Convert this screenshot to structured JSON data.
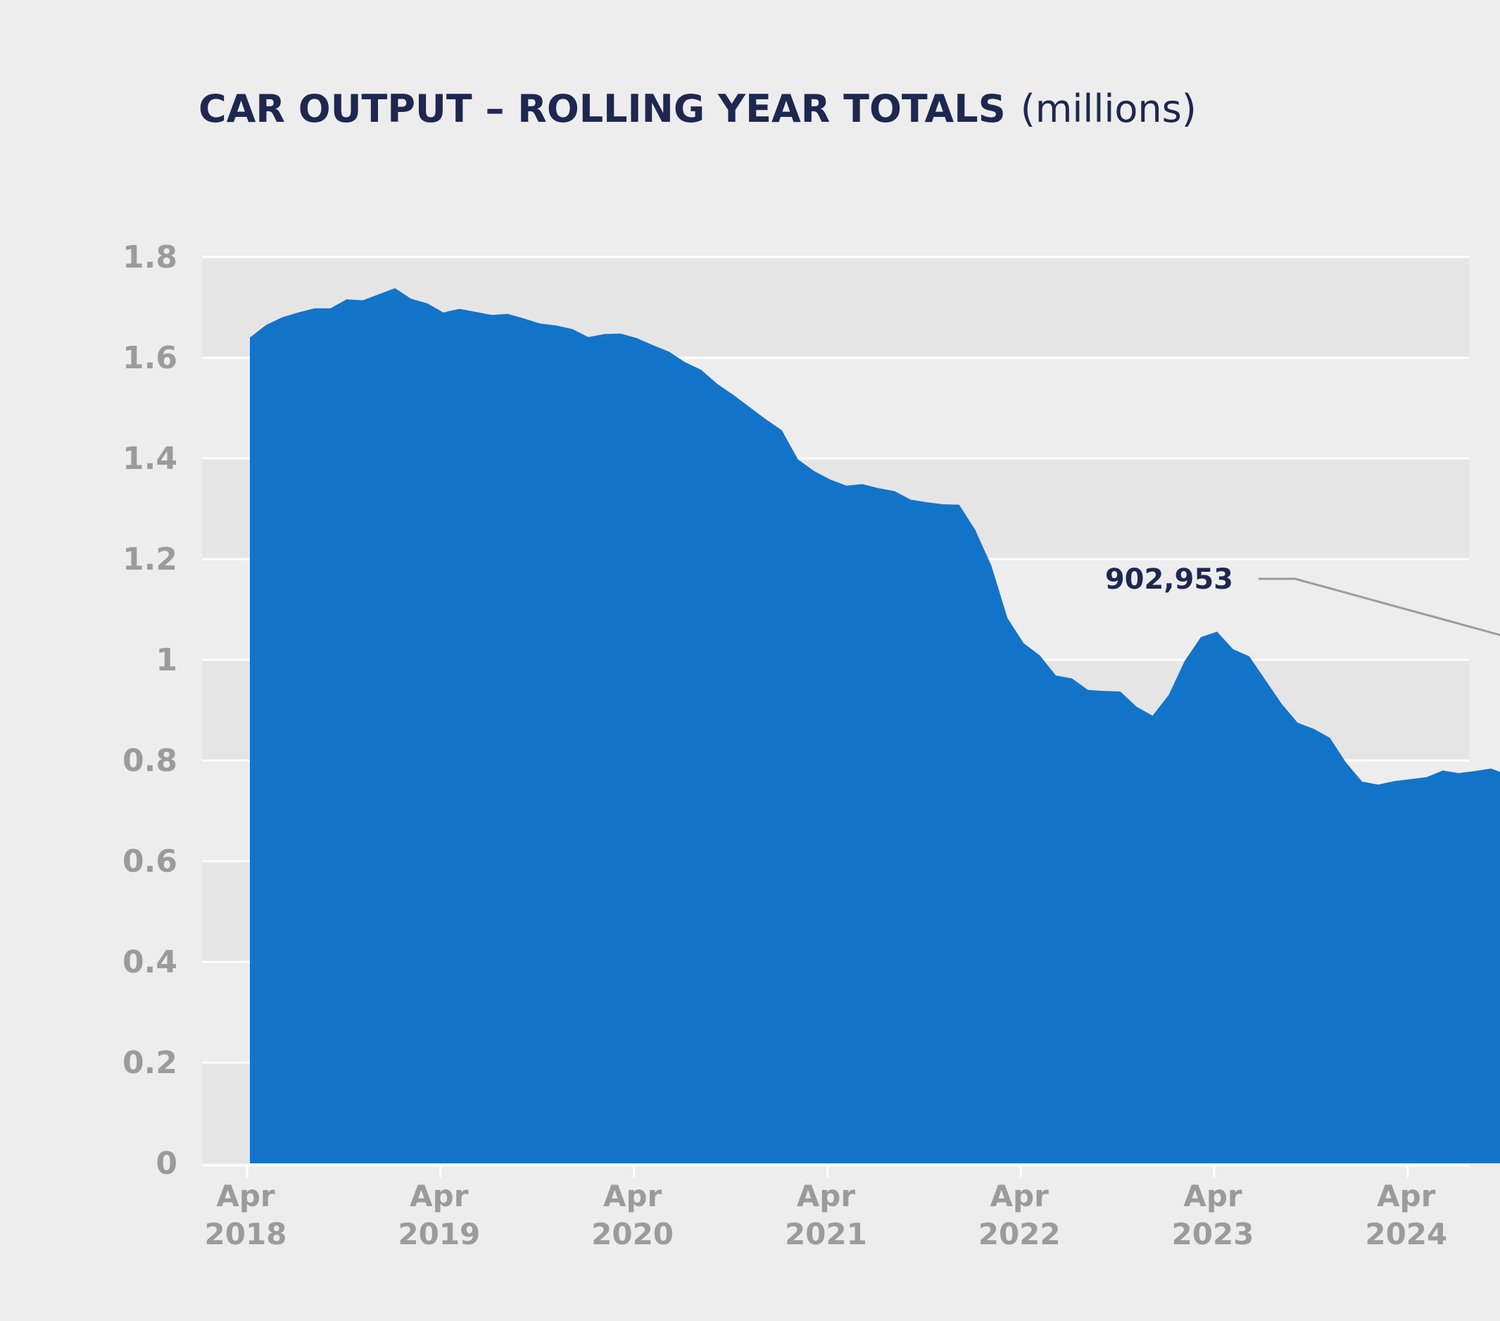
{
  "chart_data": {
    "type": "area",
    "title": "CAR OUTPUT – ROLLING YEAR TOTALS",
    "title_unit": "(millions)",
    "xlabel": "",
    "ylabel": "",
    "ylim": [
      0,
      1.8
    ],
    "yticks": [
      {
        "value": 0,
        "label": "0"
      },
      {
        "value": 0.2,
        "label": "0.2"
      },
      {
        "value": 0.4,
        "label": "0.4"
      },
      {
        "value": 0.6,
        "label": "0.6"
      },
      {
        "value": 0.8,
        "label": "0.8"
      },
      {
        "value": 1.0,
        "label": "1"
      },
      {
        "value": 1.2,
        "label": "1.2"
      },
      {
        "value": 1.4,
        "label": "1.4"
      },
      {
        "value": 1.6,
        "label": "1.6"
      },
      {
        "value": 1.8,
        "label": "1.8"
      }
    ],
    "xticks": [
      {
        "month": "Apr",
        "year": "2018",
        "index": 0
      },
      {
        "month": "Apr",
        "year": "2019",
        "index": 12
      },
      {
        "month": "Apr",
        "year": "2020",
        "index": 24
      },
      {
        "month": "Apr",
        "year": "2021",
        "index": 36
      },
      {
        "month": "Apr",
        "year": "2022",
        "index": 48
      },
      {
        "month": "Apr",
        "year": "2023",
        "index": 60
      },
      {
        "month": "Apr",
        "year": "2024",
        "index": 72
      }
    ],
    "grid": true,
    "alternating_bands": true,
    "fill_color": "#1274c9",
    "band_color": "#e5e5e6",
    "background": "#ededed",
    "series": [
      {
        "start": "Apr 2018",
        "frequency": "monthly",
        "values": [
          1.64,
          1.665,
          1.68,
          1.69,
          1.698,
          1.698,
          1.716,
          1.714,
          1.726,
          1.738,
          1.717,
          1.708,
          1.69,
          1.697,
          1.691,
          1.685,
          1.687,
          1.678,
          1.668,
          1.664,
          1.657,
          1.641,
          1.647,
          1.648,
          1.639,
          1.625,
          1.612,
          1.591,
          1.576,
          1.548,
          1.526,
          1.502,
          1.478,
          1.456,
          1.398,
          1.375,
          1.358,
          1.346,
          1.349,
          1.341,
          1.335,
          1.318,
          1.313,
          1.309,
          1.308,
          1.258,
          1.187,
          1.083,
          1.033,
          1.009,
          0.969,
          0.963,
          0.94,
          0.938,
          0.937,
          0.907,
          0.889,
          0.93,
          0.998,
          1.045,
          1.056,
          1.021,
          1.007,
          0.96,
          0.913,
          0.875,
          0.863,
          0.845,
          0.796,
          0.758,
          0.752,
          0.759,
          0.763,
          0.767,
          0.78,
          0.775,
          0.779,
          0.784,
          0.772,
          0.772,
          0.779,
          0.784,
          0.789,
          0.805,
          0.818,
          0.834,
          0.829,
          0.853,
          0.876,
          0.889,
          0.898,
          0.913,
          0.923,
          0.906,
          0.903
        ]
      }
    ],
    "annotations": [
      {
        "text": "902,953",
        "points_to": "last"
      }
    ]
  }
}
